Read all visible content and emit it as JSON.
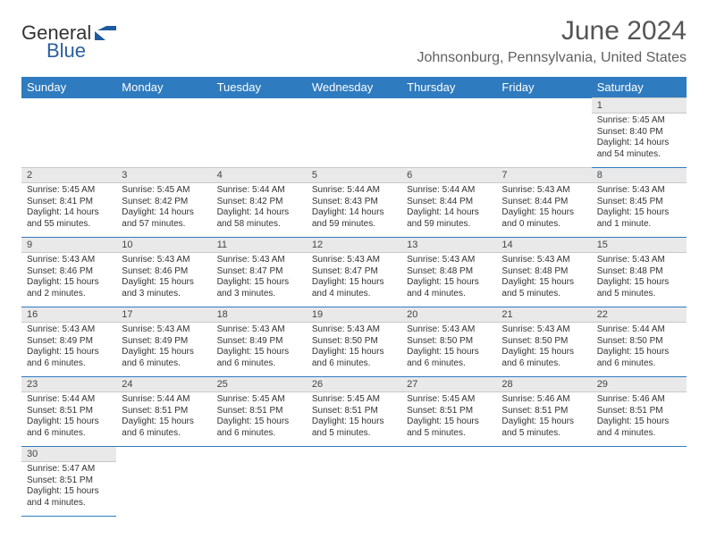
{
  "logo": {
    "word1": "General",
    "word2": "Blue"
  },
  "title": "June 2024",
  "location": "Johnsonburg, Pennsylvania, United States",
  "colors": {
    "header_bg": "#2f7bbf",
    "header_text": "#ffffff",
    "daynum_bg": "#e9e9e9",
    "row_separator": "#2f7bbf",
    "title_color": "#555555",
    "subtitle_color": "#606060",
    "logo_blue": "#1e5aa0"
  },
  "fonts": {
    "title_size_pt": 22,
    "subtitle_size_pt": 12,
    "header_size_pt": 10,
    "body_size_pt": 7.5
  },
  "weekdays": [
    "Sunday",
    "Monday",
    "Tuesday",
    "Wednesday",
    "Thursday",
    "Friday",
    "Saturday"
  ],
  "labels": {
    "sunrise": "Sunrise:",
    "sunset": "Sunset:",
    "daylight": "Daylight:"
  },
  "weeks": [
    [
      null,
      null,
      null,
      null,
      null,
      null,
      {
        "d": 1,
        "sr": "5:45 AM",
        "ss": "8:40 PM",
        "dl": "14 hours and 54 minutes."
      }
    ],
    [
      {
        "d": 2,
        "sr": "5:45 AM",
        "ss": "8:41 PM",
        "dl": "14 hours and 55 minutes."
      },
      {
        "d": 3,
        "sr": "5:45 AM",
        "ss": "8:42 PM",
        "dl": "14 hours and 57 minutes."
      },
      {
        "d": 4,
        "sr": "5:44 AM",
        "ss": "8:42 PM",
        "dl": "14 hours and 58 minutes."
      },
      {
        "d": 5,
        "sr": "5:44 AM",
        "ss": "8:43 PM",
        "dl": "14 hours and 59 minutes."
      },
      {
        "d": 6,
        "sr": "5:44 AM",
        "ss": "8:44 PM",
        "dl": "14 hours and 59 minutes."
      },
      {
        "d": 7,
        "sr": "5:43 AM",
        "ss": "8:44 PM",
        "dl": "15 hours and 0 minutes."
      },
      {
        "d": 8,
        "sr": "5:43 AM",
        "ss": "8:45 PM",
        "dl": "15 hours and 1 minute."
      }
    ],
    [
      {
        "d": 9,
        "sr": "5:43 AM",
        "ss": "8:46 PM",
        "dl": "15 hours and 2 minutes."
      },
      {
        "d": 10,
        "sr": "5:43 AM",
        "ss": "8:46 PM",
        "dl": "15 hours and 3 minutes."
      },
      {
        "d": 11,
        "sr": "5:43 AM",
        "ss": "8:47 PM",
        "dl": "15 hours and 3 minutes."
      },
      {
        "d": 12,
        "sr": "5:43 AM",
        "ss": "8:47 PM",
        "dl": "15 hours and 4 minutes."
      },
      {
        "d": 13,
        "sr": "5:43 AM",
        "ss": "8:48 PM",
        "dl": "15 hours and 4 minutes."
      },
      {
        "d": 14,
        "sr": "5:43 AM",
        "ss": "8:48 PM",
        "dl": "15 hours and 5 minutes."
      },
      {
        "d": 15,
        "sr": "5:43 AM",
        "ss": "8:48 PM",
        "dl": "15 hours and 5 minutes."
      }
    ],
    [
      {
        "d": 16,
        "sr": "5:43 AM",
        "ss": "8:49 PM",
        "dl": "15 hours and 6 minutes."
      },
      {
        "d": 17,
        "sr": "5:43 AM",
        "ss": "8:49 PM",
        "dl": "15 hours and 6 minutes."
      },
      {
        "d": 18,
        "sr": "5:43 AM",
        "ss": "8:49 PM",
        "dl": "15 hours and 6 minutes."
      },
      {
        "d": 19,
        "sr": "5:43 AM",
        "ss": "8:50 PM",
        "dl": "15 hours and 6 minutes."
      },
      {
        "d": 20,
        "sr": "5:43 AM",
        "ss": "8:50 PM",
        "dl": "15 hours and 6 minutes."
      },
      {
        "d": 21,
        "sr": "5:43 AM",
        "ss": "8:50 PM",
        "dl": "15 hours and 6 minutes."
      },
      {
        "d": 22,
        "sr": "5:44 AM",
        "ss": "8:50 PM",
        "dl": "15 hours and 6 minutes."
      }
    ],
    [
      {
        "d": 23,
        "sr": "5:44 AM",
        "ss": "8:51 PM",
        "dl": "15 hours and 6 minutes."
      },
      {
        "d": 24,
        "sr": "5:44 AM",
        "ss": "8:51 PM",
        "dl": "15 hours and 6 minutes."
      },
      {
        "d": 25,
        "sr": "5:45 AM",
        "ss": "8:51 PM",
        "dl": "15 hours and 6 minutes."
      },
      {
        "d": 26,
        "sr": "5:45 AM",
        "ss": "8:51 PM",
        "dl": "15 hours and 5 minutes."
      },
      {
        "d": 27,
        "sr": "5:45 AM",
        "ss": "8:51 PM",
        "dl": "15 hours and 5 minutes."
      },
      {
        "d": 28,
        "sr": "5:46 AM",
        "ss": "8:51 PM",
        "dl": "15 hours and 5 minutes."
      },
      {
        "d": 29,
        "sr": "5:46 AM",
        "ss": "8:51 PM",
        "dl": "15 hours and 4 minutes."
      }
    ],
    [
      {
        "d": 30,
        "sr": "5:47 AM",
        "ss": "8:51 PM",
        "dl": "15 hours and 4 minutes."
      },
      null,
      null,
      null,
      null,
      null,
      null
    ]
  ]
}
